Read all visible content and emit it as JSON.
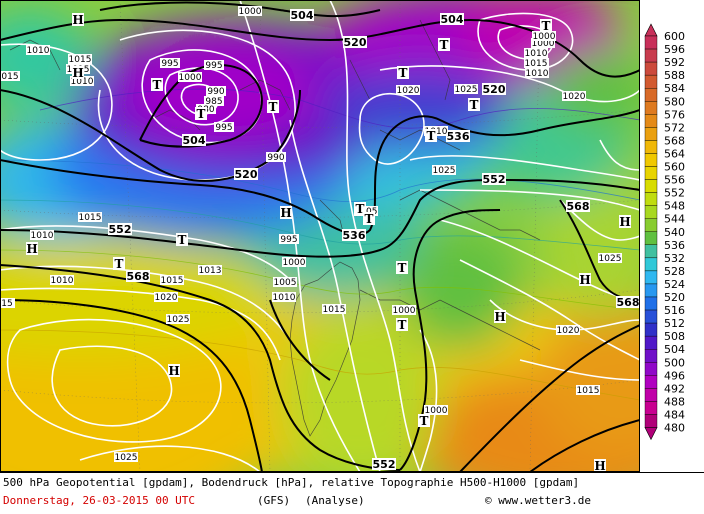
{
  "footer": {
    "line1": "500 hPa Geopotential [gpdam], Bodendruck [hPa], relative Topographie H500-H1000 [gpdam]",
    "date": "Donnerstag, 26-03-2015  00 UTC",
    "model": "(GFS)",
    "analysis": "(Analyse)",
    "copyright": "© www.wetter3.de"
  },
  "colorbar": {
    "levels": [
      600,
      596,
      592,
      588,
      584,
      580,
      576,
      572,
      568,
      564,
      560,
      556,
      552,
      548,
      544,
      540,
      536,
      532,
      528,
      524,
      520,
      516,
      512,
      508,
      504,
      500,
      496,
      492,
      488,
      484,
      480
    ],
    "colors": [
      "#c8305a",
      "#c83c4e",
      "#cc4a3c",
      "#d25a30",
      "#d86a28",
      "#de7a20",
      "#e48a18",
      "#eaa010",
      "#f0b808",
      "#f0c800",
      "#e8d400",
      "#d8dc00",
      "#c0dc10",
      "#a8d820",
      "#88cc30",
      "#60c040",
      "#40c0a0",
      "#30c8d8",
      "#30b8f0",
      "#2898f0",
      "#2070e8",
      "#2850d8",
      "#3030c8",
      "#5018c8",
      "#7010c8",
      "#9008c8",
      "#b000c0",
      "#c000a8",
      "#c80090",
      "#b00078"
    ]
  },
  "map": {
    "geopotential_labels": [
      {
        "text": "504"
      },
      {
        "text": "504"
      },
      {
        "text": "504"
      },
      {
        "text": "520"
      },
      {
        "text": "520"
      },
      {
        "text": "520"
      },
      {
        "text": "536"
      },
      {
        "text": "536"
      },
      {
        "text": "552"
      },
      {
        "text": "552"
      },
      {
        "text": "552"
      },
      {
        "text": "568"
      },
      {
        "text": "568"
      },
      {
        "text": "568"
      }
    ],
    "pressure_labels": [
      {
        "text": "1000"
      },
      {
        "text": "1010"
      },
      {
        "text": "1015"
      },
      {
        "text": "1010"
      },
      {
        "text": "1015"
      },
      {
        "text": "995"
      },
      {
        "text": "995"
      },
      {
        "text": "1000"
      },
      {
        "text": "990"
      },
      {
        "text": "985"
      },
      {
        "text": "980"
      },
      {
        "text": "995"
      },
      {
        "text": "990"
      },
      {
        "text": "1000"
      },
      {
        "text": "1010"
      },
      {
        "text": "1010"
      },
      {
        "text": "1020"
      },
      {
        "text": "1025"
      },
      {
        "text": "1020"
      },
      {
        "text": "1010"
      },
      {
        "text": "1025"
      },
      {
        "text": "1015"
      },
      {
        "text": "1010"
      },
      {
        "text": "1010"
      },
      {
        "text": "1015"
      },
      {
        "text": "1013"
      },
      {
        "text": "1020"
      },
      {
        "text": "1025"
      },
      {
        "text": "995"
      },
      {
        "text": "1000"
      },
      {
        "text": "1005"
      },
      {
        "text": "1010"
      },
      {
        "text": "1015"
      },
      {
        "text": "1005"
      },
      {
        "text": "1000"
      },
      {
        "text": "1000"
      },
      {
        "text": "1025"
      },
      {
        "text": "1020"
      },
      {
        "text": "1015"
      },
      {
        "text": "1025"
      },
      {
        "text": "1000"
      },
      {
        "text": "015"
      },
      {
        "text": "15"
      },
      {
        "text": "1010"
      },
      {
        "text": "1015"
      },
      {
        "text": "1000"
      }
    ],
    "centers": [
      {
        "type": "H"
      },
      {
        "type": "H"
      },
      {
        "type": "T"
      },
      {
        "type": "T"
      },
      {
        "type": "T"
      },
      {
        "type": "T"
      },
      {
        "type": "T"
      },
      {
        "type": "T"
      },
      {
        "type": "T"
      },
      {
        "type": "T"
      },
      {
        "type": "H"
      },
      {
        "type": "T"
      },
      {
        "type": "T"
      },
      {
        "type": "T"
      },
      {
        "type": "H"
      },
      {
        "type": "T"
      },
      {
        "type": "T"
      },
      {
        "type": "T"
      },
      {
        "type": "H"
      },
      {
        "type": "H"
      },
      {
        "type": "H"
      },
      {
        "type": "H"
      },
      {
        "type": "T"
      },
      {
        "type": "H"
      }
    ]
  }
}
